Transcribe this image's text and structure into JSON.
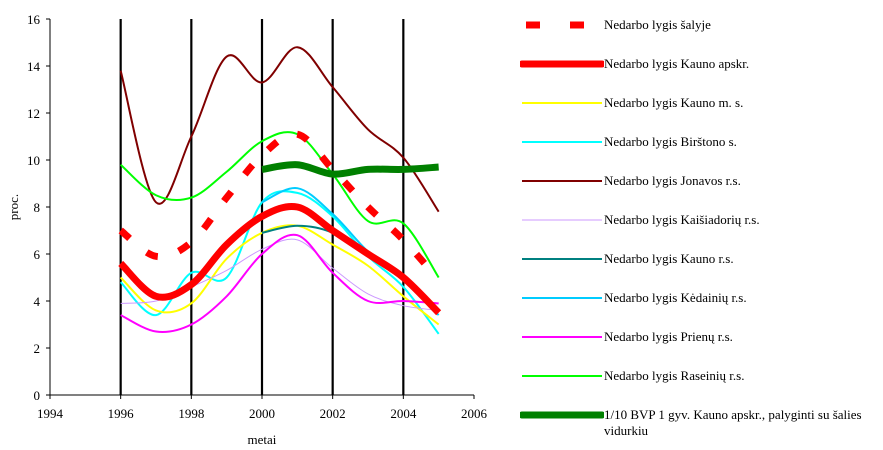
{
  "chart_data": {
    "type": "line",
    "xlabel": "metai",
    "ylabel": "proc.",
    "xlim": [
      1994,
      2006
    ],
    "ylim": [
      0,
      16
    ],
    "x_ticks": [
      1994,
      1996,
      1998,
      2000,
      2002,
      2004,
      2006
    ],
    "y_ticks": [
      0,
      2,
      4,
      6,
      8,
      10,
      12,
      14,
      16
    ],
    "grid": "vertical lines at 1996-2004",
    "legend_placement": "right",
    "series": [
      {
        "name": "Nedarbo lygis šalyje",
        "color": "#ff0000",
        "style": "dashed-thick",
        "x": [
          1996,
          1997,
          1998,
          1999,
          2000,
          2001,
          2002,
          2003,
          2004,
          2005
        ],
        "y": [
          7.0,
          5.9,
          6.5,
          8.4,
          10.2,
          11.1,
          9.6,
          8.0,
          6.6,
          4.9
        ]
      },
      {
        "name": "Nedarbo lygis Kauno apskr.",
        "color": "#ff0000",
        "style": "solid-thick",
        "x": [
          1996,
          1997,
          1998,
          1999,
          2000,
          2001,
          2002,
          2003,
          2004,
          2005
        ],
        "y": [
          5.6,
          4.2,
          4.7,
          6.4,
          7.6,
          8.0,
          7.0,
          6.0,
          5.0,
          3.5
        ]
      },
      {
        "name": "Nedarbo lygis Kauno m. s.",
        "color": "#ffff00",
        "style": "solid",
        "x": [
          1996,
          1997,
          1998,
          1999,
          2000,
          2001,
          2002,
          2003,
          2004,
          2005
        ],
        "y": [
          5.0,
          3.6,
          3.9,
          5.8,
          6.9,
          7.2,
          6.4,
          5.5,
          4.2,
          3.0
        ]
      },
      {
        "name": "Nedarbo lygis Birštono s.",
        "color": "#00ffff",
        "style": "solid",
        "x": [
          1996,
          1997,
          1998,
          1999,
          2000,
          2001,
          2002,
          2003,
          2004,
          2005
        ],
        "y": [
          4.8,
          3.4,
          5.2,
          5.0,
          8.2,
          8.6,
          7.6,
          5.9,
          4.6,
          2.6
        ]
      },
      {
        "name": "Nedarbo lygis Jonavos r.s.",
        "color": "#800000",
        "style": "solid",
        "x": [
          1996,
          1997,
          1998,
          1999,
          2000,
          2001,
          2002,
          2003,
          2004,
          2005
        ],
        "y": [
          13.8,
          8.2,
          11.0,
          14.4,
          13.3,
          14.8,
          13.1,
          11.3,
          10.1,
          7.8
        ]
      },
      {
        "name": "Nedarbo lygis Kaišiadorių r.s.",
        "color": "#cc99ff",
        "style": "solid-thin",
        "x": [
          1996,
          1997,
          1998,
          1999,
          2000,
          2001,
          2002,
          2003,
          2004,
          2005
        ],
        "y": [
          3.9,
          4.0,
          4.6,
          5.3,
          6.2,
          6.6,
          5.4,
          4.3,
          3.8,
          3.6
        ]
      },
      {
        "name": "Nedarbo lygis Kauno r.s.",
        "color": "#008080",
        "style": "solid",
        "x": [
          2000,
          2001,
          2002,
          2003,
          2004,
          2005
        ],
        "y": [
          6.9,
          7.2,
          6.9,
          5.9,
          4.9,
          3.6
        ]
      },
      {
        "name": "Nedarbo lygis Kėdainių r.s.",
        "color": "#00ccff",
        "style": "solid",
        "x": [
          2000,
          2001,
          2002,
          2003,
          2004,
          2005
        ],
        "y": [
          8.2,
          8.8,
          7.7,
          6.1,
          4.9,
          3.4
        ]
      },
      {
        "name": "Nedarbo lygis Prienų r.s.",
        "color": "#ff00ff",
        "style": "solid",
        "x": [
          1996,
          1997,
          1998,
          1999,
          2000,
          2001,
          2002,
          2003,
          2004,
          2005
        ],
        "y": [
          3.4,
          2.7,
          3.0,
          4.2,
          6.0,
          6.8,
          5.2,
          4.0,
          4.0,
          3.9
        ]
      },
      {
        "name": "Nedarbo lygis Raseinių r.s.",
        "color": "#00ff00",
        "style": "solid",
        "x": [
          1996,
          1997,
          1998,
          1999,
          2000,
          2001,
          2002,
          2003,
          2004,
          2005
        ],
        "y": [
          9.8,
          8.5,
          8.4,
          9.5,
          10.8,
          11.1,
          9.4,
          7.4,
          7.3,
          5.0
        ]
      },
      {
        "name": "1/10 BVP 1 gyv. Kauno apskr., palyginti su šalies vidurkiu",
        "color": "#008000",
        "style": "solid-thick",
        "x": [
          2000,
          2001,
          2002,
          2003,
          2004,
          2005
        ],
        "y": [
          9.6,
          9.8,
          9.4,
          9.6,
          9.6,
          9.7
        ]
      }
    ]
  }
}
